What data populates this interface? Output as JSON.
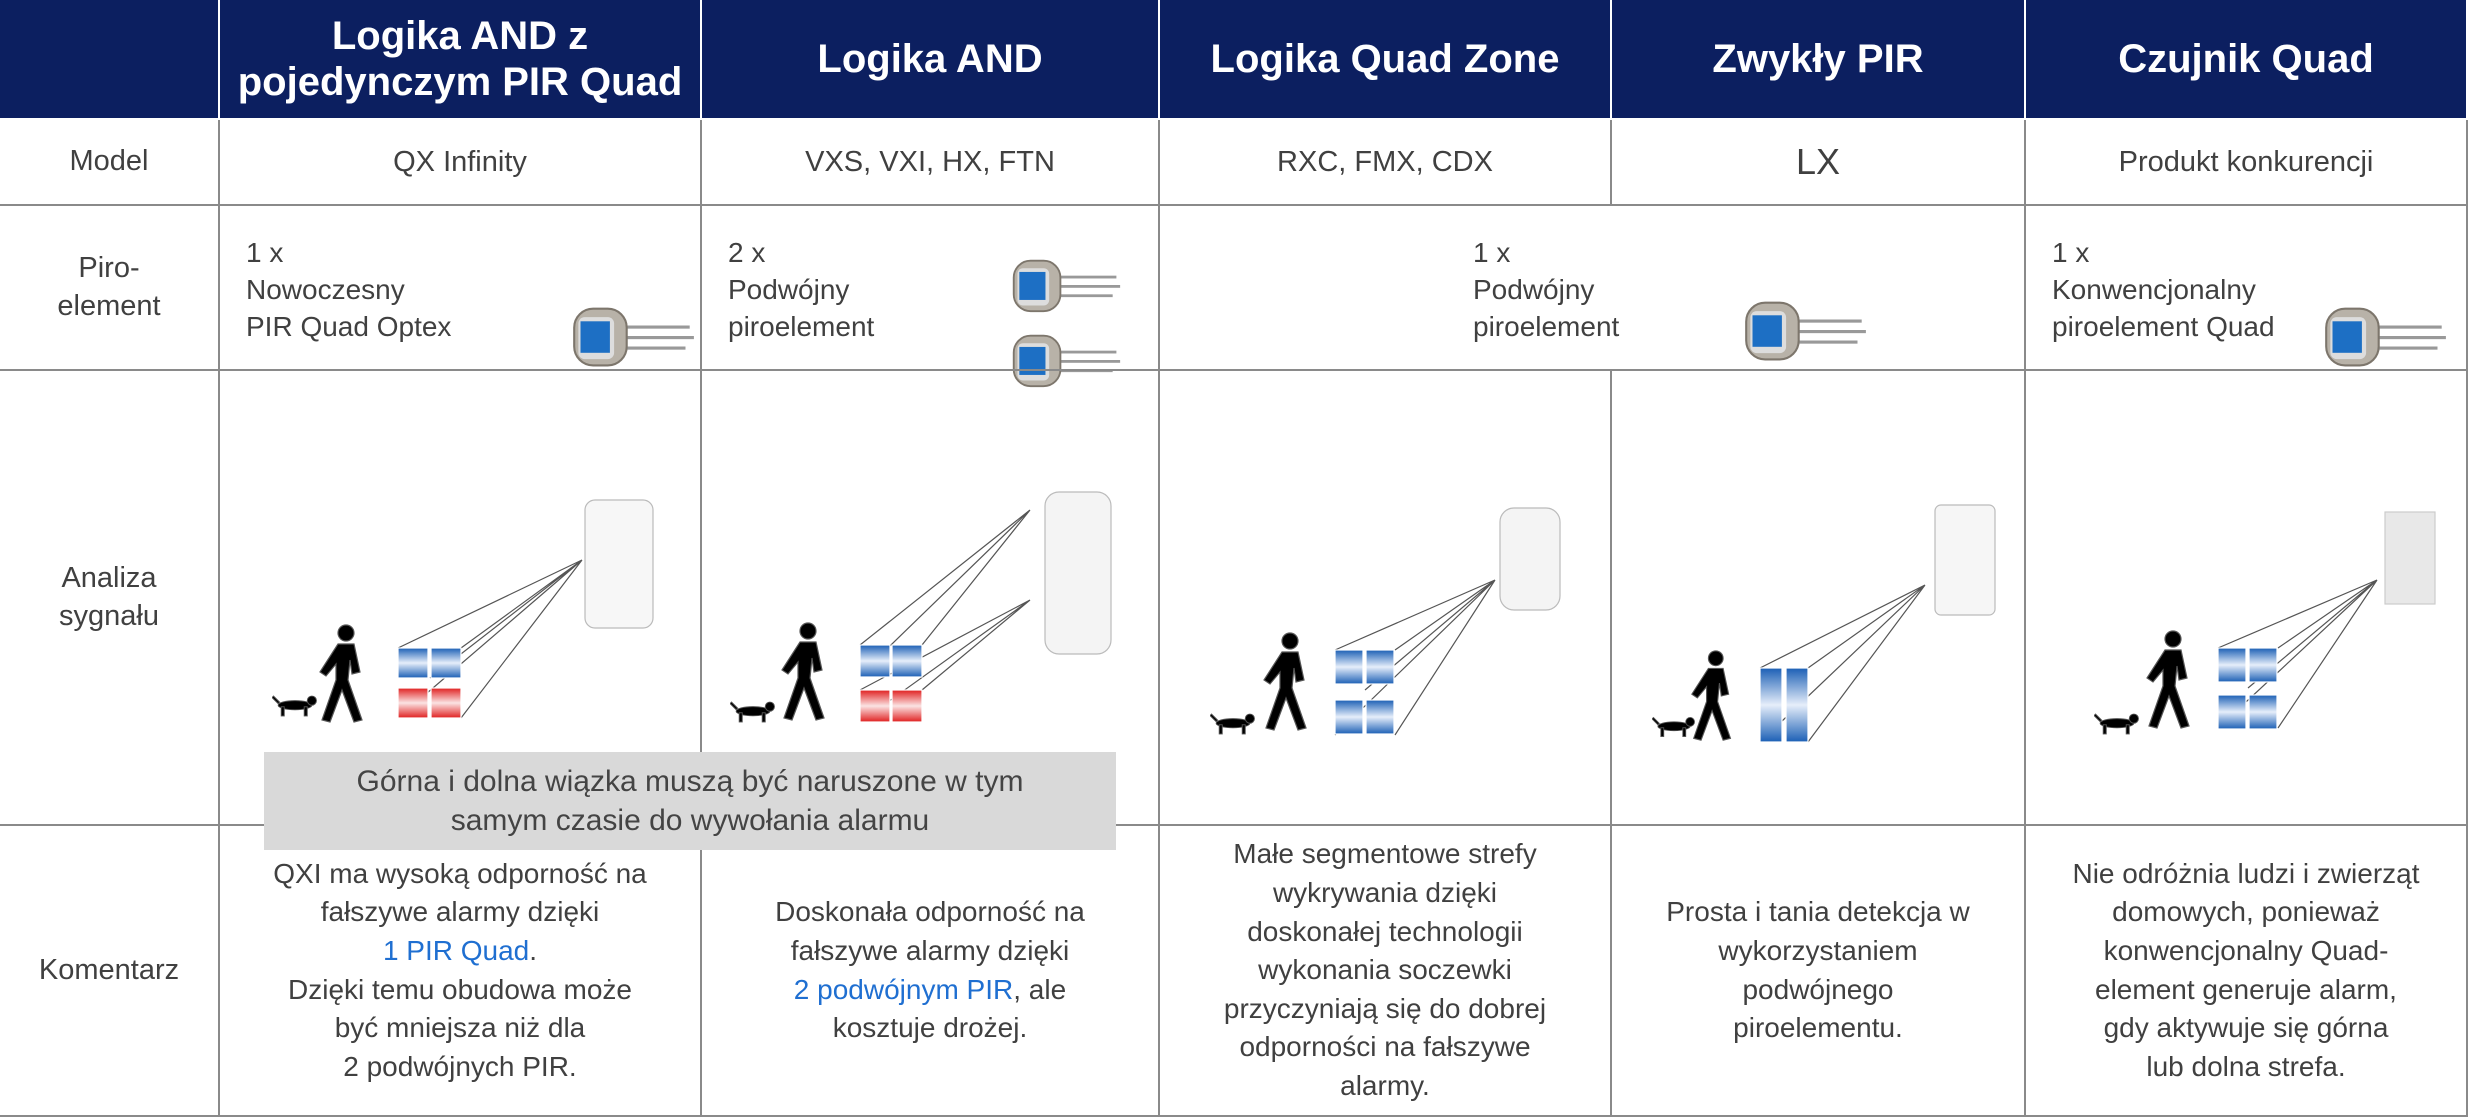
{
  "header": {
    "columns": [
      "Logika AND z\npojedynczym PIR Quad",
      "Logika AND",
      "Logika Quad Zone",
      "Zwykły PIR",
      "Czujnik Quad"
    ]
  },
  "rows": {
    "model": {
      "label": "Model",
      "cells": [
        "QX Infinity",
        "VXS, VXI, HX, FTN",
        "RXC, FMX, CDX",
        "LX",
        "Produkt konkurencji"
      ]
    },
    "piro": {
      "label": "Piro-\nelement",
      "cells": [
        "1 x\nNowoczesny\nPIR Quad Optex",
        "2 x\nPodwójny\npiroelement",
        "1 x\nPodwójny\npiroelement",
        "1 x\nKonwencjonalny\npiroelement Quad"
      ]
    },
    "analiza": {
      "label": "Analiza\nsygnału"
    },
    "komentarz": {
      "label": "Komentarz",
      "cells": [
        [
          {
            "text": "QXI ma wysoką odporność na\nfałszywe alarmy dzięki\n"
          },
          {
            "text": "1 PIR Quad",
            "highlight": true
          },
          {
            "text": ".\nDzięki temu obudowa może\nbyć mniejsza niż dla\n2 podwójnych PIR."
          }
        ],
        [
          {
            "text": "Doskonała odporność na\nfałszywe alarmy dzięki\n"
          },
          {
            "text": "2 podwójnym PIR",
            "highlight": true
          },
          {
            "text": ", ale\nkosztuje drożej."
          }
        ],
        [
          {
            "text": "Małe segmentowe strefy\nwykrywania dzięki\ndoskonałej technologii\nwykonania soczewki\nprzyczyniają się do dobrej\nodporności na fałszywe\nalarmy."
          }
        ],
        [
          {
            "text": "Prosta i tania detekcja w\nwykorzystaniem\npodwójnego\npiroelementu."
          }
        ],
        [
          {
            "text": "Nie odróżnia ludzi i zwierząt\ndomowych, ponieważ\nkonwencjonalny Quad-\nelement generuje alarm,\ngdy aktywuje się górna\nlub dolna strefa."
          }
        ]
      ]
    }
  },
  "note": "Górna i dolna wiązka muszą być naruszone w tym\nsamym czasie do wywołania alarmu"
}
